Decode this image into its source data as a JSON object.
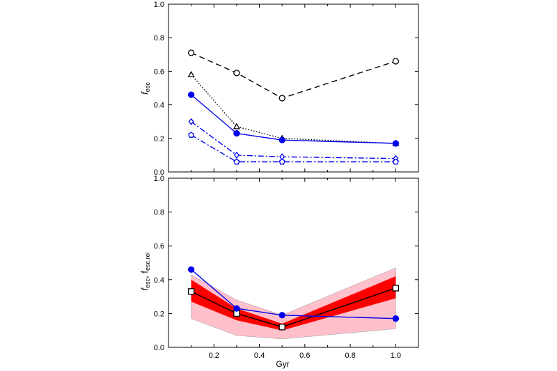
{
  "chart_data": [
    {
      "type": "line",
      "title": "",
      "xlabel": "",
      "ylabel": {
        "main": "f",
        "sub": "esc"
      },
      "xlim": [
        0,
        1.1
      ],
      "ylim": [
        0,
        1.0
      ],
      "xticks": [],
      "yticks": [
        "0.0",
        "0.2",
        "0.4",
        "0.6",
        "0.8",
        "1.0"
      ],
      "grid": false,
      "series": [
        {
          "x": [
            0.1,
            0.3,
            0.5,
            1.0
          ],
          "values": [
            0.71,
            0.59,
            0.44,
            0.66
          ],
          "color": "#000000",
          "dash": "dashed",
          "marker": "circle-open"
        },
        {
          "x": [
            0.1,
            0.3,
            0.5,
            1.0
          ],
          "values": [
            0.58,
            0.27,
            0.2,
            0.17
          ],
          "color": "#000000",
          "dash": "dotted",
          "marker": "triangle-open"
        },
        {
          "x": [
            0.1,
            0.3,
            0.5,
            1.0
          ],
          "values": [
            0.46,
            0.23,
            0.19,
            0.17
          ],
          "color": "#0000ee",
          "dash": "solid",
          "marker": "circle-filled"
        },
        {
          "x": [
            0.1,
            0.3,
            0.5,
            1.0
          ],
          "values": [
            0.3,
            0.1,
            0.09,
            0.08
          ],
          "color": "#0000ee",
          "dash": "dashdot",
          "marker": "diamond-open"
        },
        {
          "x": [
            0.1,
            0.3,
            0.5,
            1.0
          ],
          "values": [
            0.22,
            0.06,
            0.06,
            0.06
          ],
          "color": "#0000ee",
          "dash": "dashdot",
          "marker": "pentagon-open"
        }
      ]
    },
    {
      "type": "line",
      "title": "",
      "xlabel": "Gyr",
      "ylabel": {
        "parts": [
          {
            "main": "f",
            "sub": "esc"
          },
          {
            "main": ", f",
            "sub": "esc,rel"
          }
        ]
      },
      "xlim": [
        0,
        1.1
      ],
      "ylim": [
        0,
        1.0
      ],
      "xticks": [
        "0.2",
        "0.4",
        "0.6",
        "0.8",
        "1.0"
      ],
      "yticks": [
        "0.0",
        "0.2",
        "0.4",
        "0.6",
        "0.8",
        "1.0"
      ],
      "grid": false,
      "bands": [
        {
          "x": [
            0.1,
            0.3,
            0.5,
            1.0
          ],
          "low": [
            0.17,
            0.07,
            0.05,
            0.11
          ],
          "high": [
            0.43,
            0.28,
            0.19,
            0.47
          ],
          "color": "#ffc0cb"
        },
        {
          "x": [
            0.1,
            0.3,
            0.5,
            1.0
          ],
          "low": [
            0.27,
            0.16,
            0.1,
            0.29
          ],
          "high": [
            0.4,
            0.23,
            0.14,
            0.42
          ],
          "color": "#ff0000"
        }
      ],
      "series": [
        {
          "x": [
            0.1,
            0.3,
            0.5,
            1.0
          ],
          "values": [
            0.33,
            0.2,
            0.12,
            0.35
          ],
          "color": "#000000",
          "dash": "solid",
          "marker": "square-open"
        },
        {
          "x": [
            0.1,
            0.3,
            0.5,
            1.0
          ],
          "values": [
            0.46,
            0.23,
            0.19,
            0.17
          ],
          "color": "#0000ee",
          "dash": "solid",
          "marker": "circle-filled"
        }
      ]
    }
  ]
}
